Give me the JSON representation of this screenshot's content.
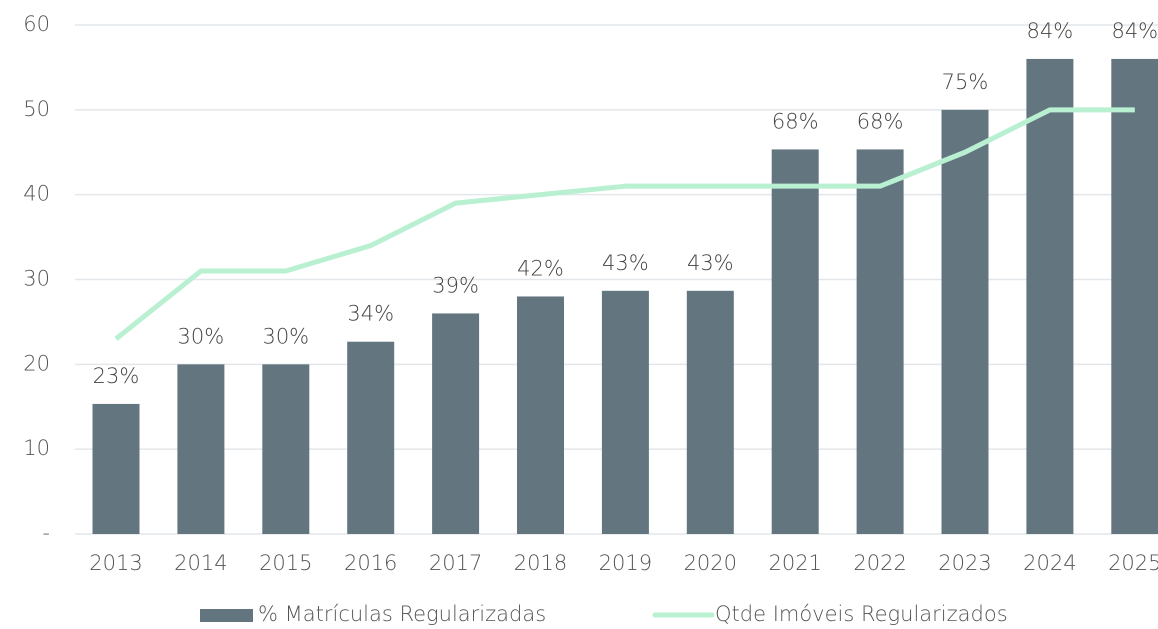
{
  "chart_data": {
    "type": "bar-line",
    "categories": [
      "2013",
      "2014",
      "2015",
      "2016",
      "2017",
      "2018",
      "2019",
      "2020",
      "2021",
      "2022",
      "2023",
      "2024",
      "2025"
    ],
    "series": [
      {
        "name": "% Matrículas Regularizadas",
        "type": "bar",
        "axis": "y2",
        "color": "#637680",
        "values": [
          23,
          30,
          30,
          34,
          39,
          42,
          43,
          43,
          68,
          68,
          75,
          84,
          84
        ],
        "value_labels": [
          "23%",
          "30%",
          "30%",
          "34%",
          "39%",
          "42%",
          "43%",
          "43%",
          "68%",
          "68%",
          "75%",
          "84%",
          "84%"
        ]
      },
      {
        "name": "Qtde Imóveis Regularizados",
        "type": "line",
        "color": "#b9f0d2",
        "values": [
          23,
          31,
          31,
          34,
          39,
          40,
          41,
          41,
          41,
          41,
          45,
          50,
          50
        ]
      }
    ],
    "ylim": [
      0,
      60
    ],
    "yticks": [
      {
        "value": 0,
        "label": "-"
      },
      10,
      20,
      30,
      40,
      50,
      60
    ],
    "y2lim": [
      0,
      90
    ],
    "grid": true,
    "legend": "bottom"
  }
}
